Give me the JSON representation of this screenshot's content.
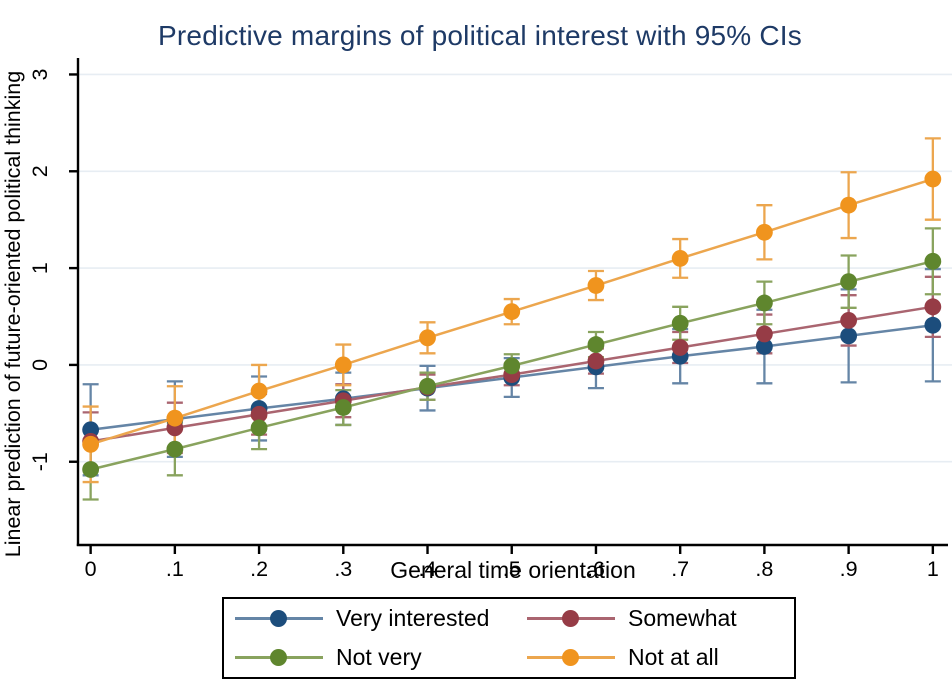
{
  "chart_data": {
    "type": "line",
    "title": "Predictive margins of political interest with 95% CIs",
    "xlabel": "General time orientation",
    "ylabel": "Linear prediction of future-oriented political thinking",
    "x": [
      0,
      0.1,
      0.2,
      0.3,
      0.4,
      0.5,
      0.6,
      0.7,
      0.8,
      0.9,
      1
    ],
    "x_tick_labels": [
      "0",
      ".1",
      ".2",
      ".3",
      ".4",
      ".5",
      ".6",
      ".7",
      ".8",
      ".9",
      "1"
    ],
    "y_ticks": [
      -1,
      0,
      1,
      2,
      3
    ],
    "y_tick_labels": [
      "-1",
      "0",
      "1",
      "2",
      "3"
    ],
    "xlim": [
      -0.015,
      1.018
    ],
    "ylim": [
      -1.86,
      3.17
    ],
    "grid": true,
    "legend_position": "bottom",
    "ci_level": "95% CIs",
    "marker": "circle",
    "error_bars": true,
    "series": [
      {
        "name": "Very interested",
        "color": "#1c4d7c",
        "line_color": "#6585a6",
        "values": [
          -0.67,
          -0.56,
          -0.45,
          -0.35,
          -0.24,
          -0.13,
          -0.02,
          0.09,
          0.19,
          0.3,
          0.41
        ],
        "ci": [
          0.47,
          0.39,
          0.33,
          0.27,
          0.23,
          0.2,
          0.22,
          0.28,
          0.38,
          0.48,
          0.58
        ]
      },
      {
        "name": "Somewhat",
        "color": "#963c46",
        "line_color": "#aa6570",
        "values": [
          -0.79,
          -0.65,
          -0.51,
          -0.37,
          -0.23,
          -0.1,
          0.04,
          0.18,
          0.32,
          0.46,
          0.6
        ],
        "ci": [
          0.3,
          0.26,
          0.21,
          0.17,
          0.13,
          0.11,
          0.13,
          0.16,
          0.2,
          0.26,
          0.31
        ]
      },
      {
        "name": "Not very",
        "color": "#5f862e",
        "line_color": "#89a35e",
        "values": [
          -1.08,
          -0.87,
          -0.65,
          -0.44,
          -0.22,
          -0.01,
          0.21,
          0.43,
          0.64,
          0.86,
          1.07
        ],
        "ci": [
          0.31,
          0.27,
          0.22,
          0.18,
          0.14,
          0.12,
          0.13,
          0.17,
          0.22,
          0.27,
          0.34
        ]
      },
      {
        "name": "Not at all",
        "color": "#f0941e",
        "line_color": "#eca64e",
        "values": [
          -0.82,
          -0.55,
          -0.27,
          0.0,
          0.28,
          0.55,
          0.82,
          1.1,
          1.37,
          1.65,
          1.92
        ],
        "ci": [
          0.39,
          0.33,
          0.27,
          0.21,
          0.16,
          0.13,
          0.15,
          0.2,
          0.28,
          0.34,
          0.42
        ]
      }
    ],
    "colors": {
      "title": "#1e3a66",
      "grid": "#e7edf3",
      "axis": "#000000",
      "background": "#ffffff"
    }
  }
}
